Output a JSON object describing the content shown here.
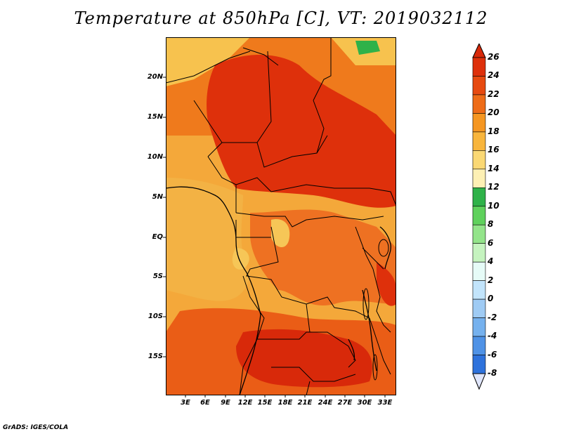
{
  "title": "Temperature at 850hPa [C], VT: 2019032112",
  "credit": "GrADS: IGES/COLA",
  "map": {
    "lat_ticks": [
      "20N",
      "15N",
      "10N",
      "5N",
      "EQ",
      "5S",
      "10S",
      "15S"
    ],
    "lon_ticks": [
      "3E",
      "6E",
      "9E",
      "12E",
      "15E",
      "18E",
      "21E",
      "24E",
      "27E",
      "30E",
      "33E"
    ]
  },
  "colorbar": {
    "labels": [
      "26",
      "24",
      "22",
      "20",
      "18",
      "16",
      "14",
      "12",
      "10",
      "8",
      "6",
      "4",
      "2",
      "0",
      "-2",
      "-4",
      "-6",
      "-8"
    ],
    "colors": [
      "#f5a00a",
      "#f07b1a",
      "#e95d12",
      "#e0400a",
      "#d8290a",
      "#f4cd57",
      "#fbe794",
      "#fdf3b9",
      "#2fb249",
      "#5fd15c",
      "#93e48a",
      "#c5f3bf",
      "#e6fbf7",
      "#c2e4fb",
      "#9fcbf4",
      "#75b1ee",
      "#4f92e6",
      "#2e72dc",
      "#1b57c7",
      "#123fb0",
      "#0b2990",
      "#08135f"
    ],
    "top_arrow_color": "#d8290a",
    "bottom_arrow_color": "#e0e6fb"
  }
}
